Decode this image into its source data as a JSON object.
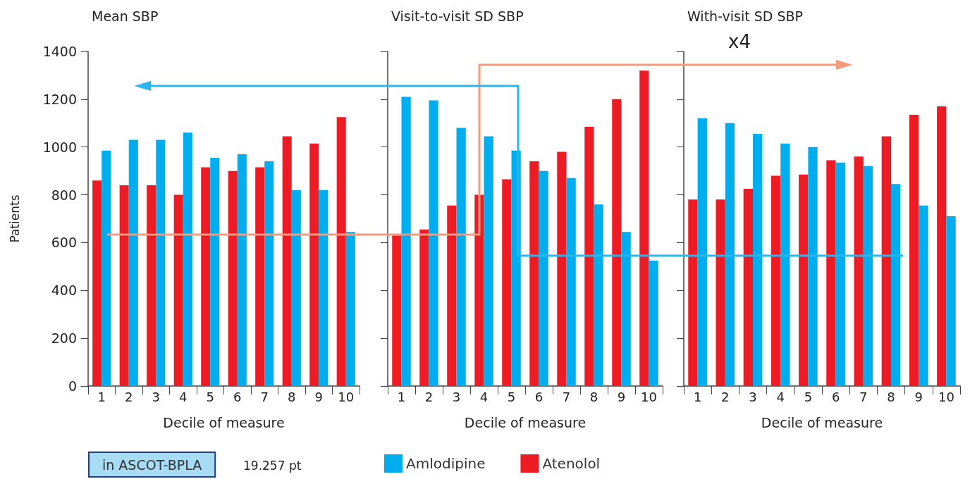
{
  "chart_data": [
    {
      "type": "bar",
      "title": "Mean SBP",
      "xlabel": "Decile of measure",
      "ylabel": "Patients",
      "categories": [
        "1",
        "2",
        "3",
        "4",
        "5",
        "6",
        "7",
        "8",
        "9",
        "10"
      ],
      "series": [
        {
          "color": "#ed1c24",
          "values": [
            860,
            840,
            840,
            800,
            915,
            900,
            915,
            1045,
            1015,
            1125
          ]
        },
        {
          "color": "#00aeef",
          "values": [
            985,
            1030,
            1030,
            1060,
            955,
            970,
            940,
            820,
            820,
            645
          ]
        }
      ],
      "ylim": [
        0,
        1400
      ],
      "yticks": [
        0,
        200,
        400,
        600,
        800,
        1000,
        1200,
        1400
      ],
      "grid": false,
      "legend": false,
      "annotations": [
        "in ASCOT-BPLA",
        "19.257 pt"
      ]
    },
    {
      "type": "bar",
      "title": "Visit-to-visit SD SBP",
      "xlabel": "Decile of measure",
      "categories": [
        "1",
        "2",
        "3",
        "4",
        "5",
        "6",
        "7",
        "8",
        "9",
        "10"
      ],
      "series": [
        {
          "name": "Atenolol",
          "color": "#ed1c24",
          "values": [
            630,
            655,
            755,
            800,
            865,
            940,
            980,
            1085,
            1200,
            1320
          ]
        },
        {
          "name": "Amlodipine",
          "color": "#00aeef",
          "values": [
            1210,
            1195,
            1080,
            1045,
            985,
            900,
            870,
            760,
            645,
            525
          ]
        }
      ],
      "ylim": [
        0,
        1400
      ],
      "yticks": [
        0,
        200,
        400,
        600,
        800,
        1000,
        1200,
        1400
      ],
      "tick_labels": "x",
      "grid": false,
      "legend": "bottom"
    },
    {
      "type": "bar",
      "title": "With-visit SD SBP",
      "xlabel": "Decile of measure",
      "categories": [
        "1",
        "2",
        "3",
        "4",
        "5",
        "6",
        "7",
        "8",
        "9",
        "10"
      ],
      "series": [
        {
          "color": "#ed1c24",
          "values": [
            780,
            780,
            825,
            880,
            885,
            945,
            960,
            1045,
            1135,
            1170
          ]
        },
        {
          "color": "#00aeef",
          "values": [
            1120,
            1100,
            1055,
            1015,
            1000,
            935,
            920,
            845,
            755,
            710
          ]
        }
      ],
      "ylim": [
        0,
        1400
      ],
      "yticks": [
        0,
        200,
        400,
        600,
        800,
        1000,
        1200,
        1400
      ],
      "tick_labels": "x",
      "grid": false,
      "legend": false,
      "annotations": [
        "x4"
      ]
    }
  ]
}
